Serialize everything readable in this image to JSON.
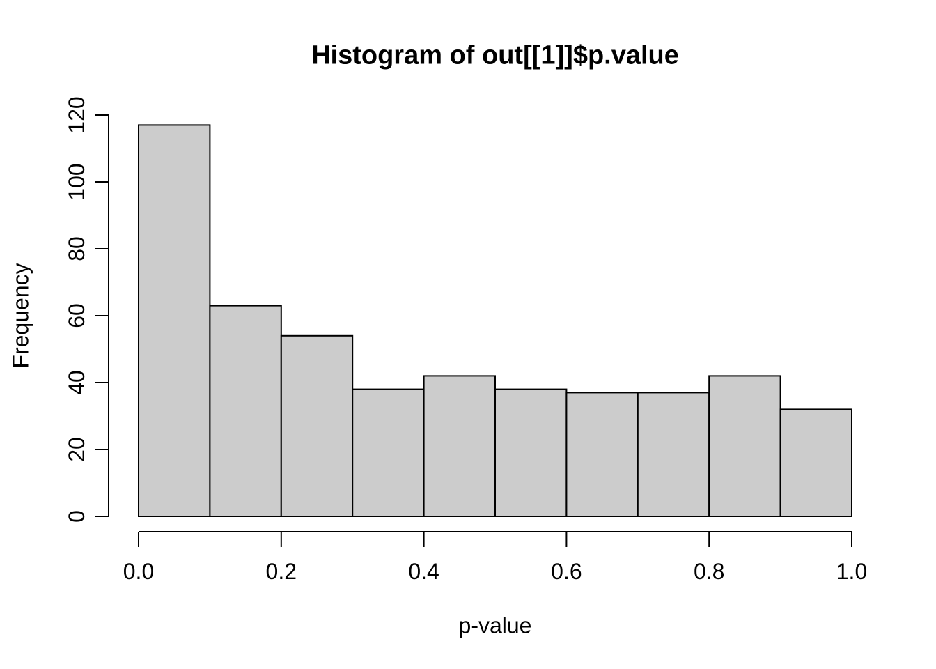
{
  "chart_data": {
    "type": "bar",
    "subtype": "histogram",
    "title": "Histogram of out[[1]]$p.value",
    "xlabel": "p-value",
    "ylabel": "Frequency",
    "bin_edges": [
      0.0,
      0.1,
      0.2,
      0.3,
      0.4,
      0.5,
      0.6,
      0.7,
      0.8,
      0.9,
      1.0
    ],
    "values": [
      117,
      63,
      54,
      38,
      42,
      38,
      37,
      37,
      42,
      32
    ],
    "xlim": [
      0.0,
      1.0
    ],
    "ylim": [
      0,
      120
    ],
    "x_ticks": [
      {
        "value": 0.0,
        "label": "0.0"
      },
      {
        "value": 0.2,
        "label": "0.2"
      },
      {
        "value": 0.4,
        "label": "0.4"
      },
      {
        "value": 0.6,
        "label": "0.6"
      },
      {
        "value": 0.8,
        "label": "0.8"
      },
      {
        "value": 1.0,
        "label": "1.0"
      }
    ],
    "y_ticks": [
      {
        "value": 0,
        "label": "0"
      },
      {
        "value": 20,
        "label": "20"
      },
      {
        "value": 40,
        "label": "40"
      },
      {
        "value": 60,
        "label": "60"
      },
      {
        "value": 80,
        "label": "80"
      },
      {
        "value": 100,
        "label": "100"
      },
      {
        "value": 120,
        "label": "120"
      }
    ],
    "grid": false,
    "legend": "none",
    "bar_fill": "#CCCCCC",
    "bar_stroke": "#000000",
    "axis_color": "#000000",
    "text_color": "#000000",
    "background": "#FFFFFF"
  }
}
